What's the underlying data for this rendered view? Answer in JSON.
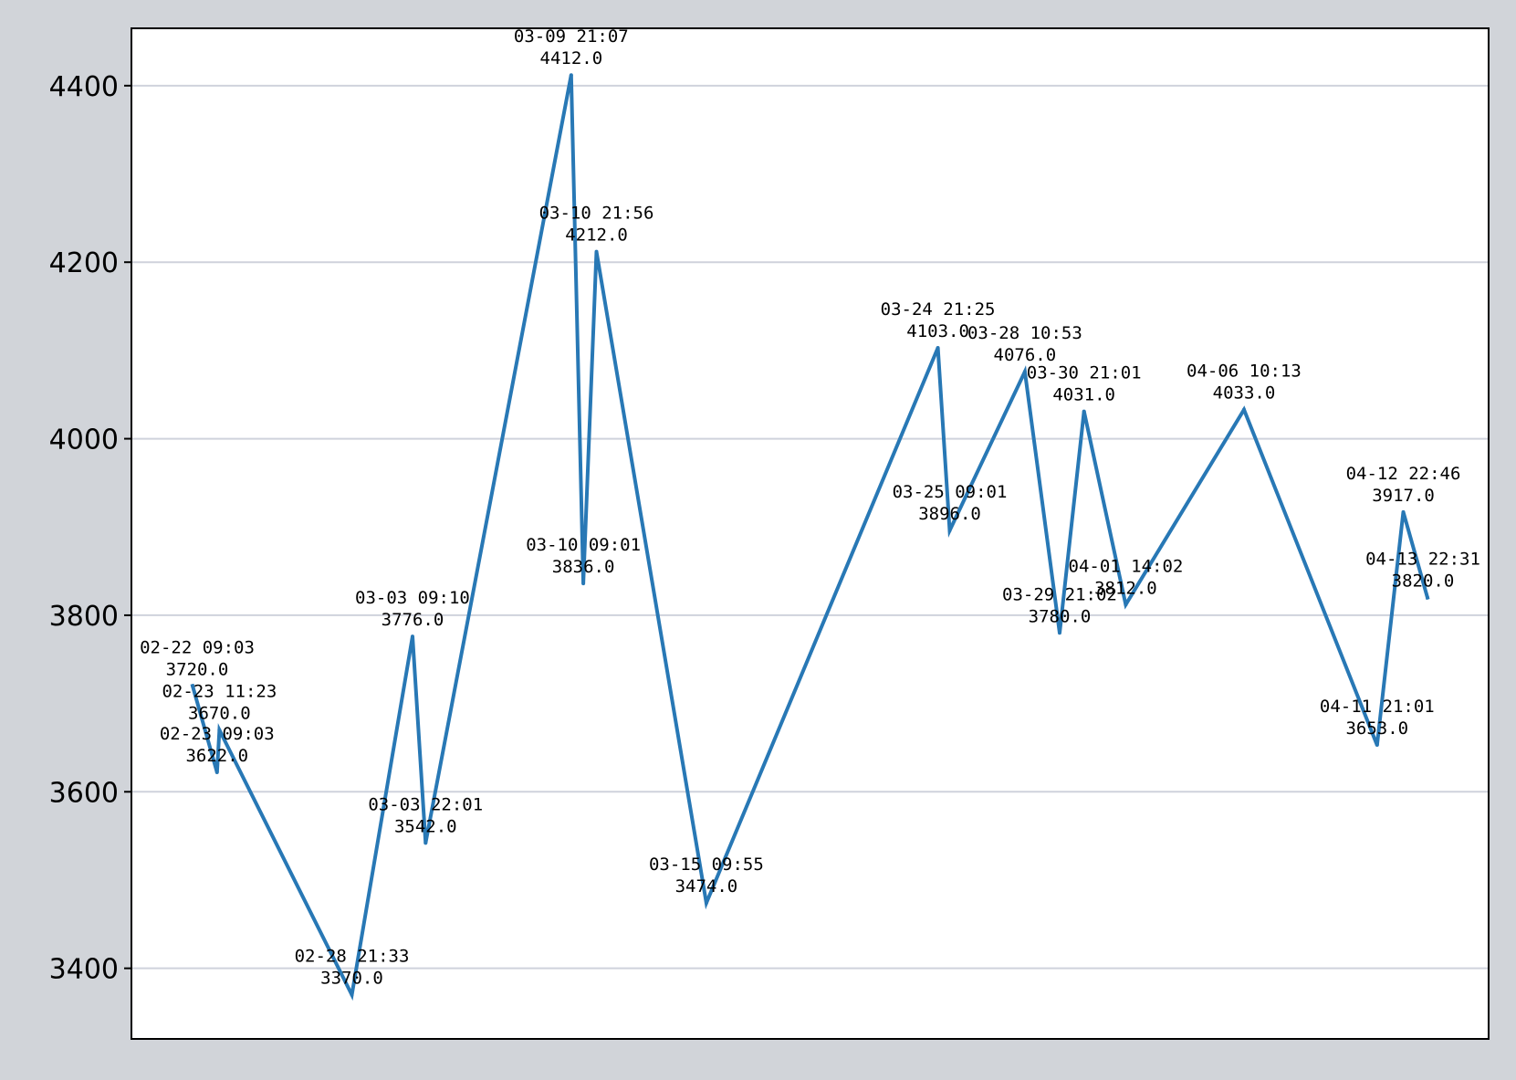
{
  "chart_data": {
    "type": "line",
    "title": "",
    "xlabel": "",
    "ylabel": "",
    "ylim": [
      3320,
      4465
    ],
    "yticks": [
      3400,
      3600,
      3800,
      4000,
      4200,
      4400
    ],
    "ytick_labels": [
      "3400",
      "3600",
      "3800",
      "4000",
      "4200",
      "4400"
    ],
    "grid": "horizontal",
    "legend": "none",
    "colors": {
      "line": "#2878b5",
      "grid": "#cfd2dc",
      "background": "#ffffff",
      "figure": "#d1d4d9",
      "frame": "#000000"
    },
    "points": [
      {
        "date": "02-22 09:03",
        "value": 3720.0,
        "value_label": "3720.0"
      },
      {
        "date": "02-23 09:03",
        "value": 3622.0,
        "value_label": "3622.0"
      },
      {
        "date": "02-23 11:23",
        "value": 3670.0,
        "value_label": "3670.0"
      },
      {
        "date": "02-28 21:33",
        "value": 3370.0,
        "value_label": "3370.0"
      },
      {
        "date": "03-03 09:10",
        "value": 3776.0,
        "value_label": "3776.0"
      },
      {
        "date": "03-03 22:01",
        "value": 3542.0,
        "value_label": "3542.0"
      },
      {
        "date": "03-09 21:07",
        "value": 4412.0,
        "value_label": "4412.0"
      },
      {
        "date": "03-10 09:01",
        "value": 3836.0,
        "value_label": "3836.0"
      },
      {
        "date": "03-10 21:56",
        "value": 4212.0,
        "value_label": "4212.0"
      },
      {
        "date": "03-15 09:55",
        "value": 3474.0,
        "value_label": "3474.0"
      },
      {
        "date": "03-24 21:25",
        "value": 4103.0,
        "value_label": "4103.0"
      },
      {
        "date": "03-25 09:01",
        "value": 3896.0,
        "value_label": "3896.0"
      },
      {
        "date": "03-28 10:53",
        "value": 4076.0,
        "value_label": "4076.0"
      },
      {
        "date": "03-29 21:02",
        "value": 3780.0,
        "value_label": "3780.0"
      },
      {
        "date": "03-30 21:01",
        "value": 4031.0,
        "value_label": "4031.0"
      },
      {
        "date": "04-01 14:02",
        "value": 3812.0,
        "value_label": "3812.0"
      },
      {
        "date": "04-06 10:13",
        "value": 4033.0,
        "value_label": "4033.0"
      },
      {
        "date": "04-11 21:01",
        "value": 3653.0,
        "value_label": "3653.0"
      },
      {
        "date": "04-12 22:46",
        "value": 3917.0,
        "value_label": "3917.0"
      },
      {
        "date": "04-13 22:31",
        "value": 3820.0,
        "value_label": "3820.0"
      }
    ]
  }
}
